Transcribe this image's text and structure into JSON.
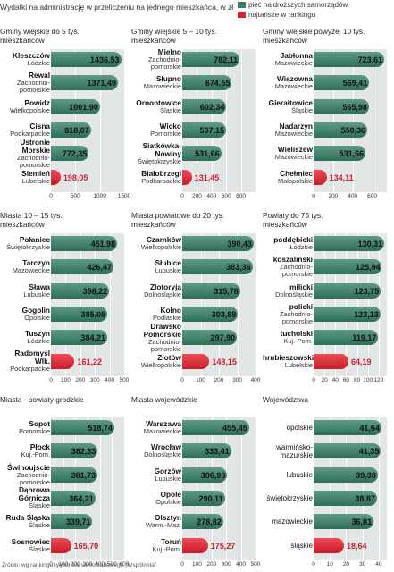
{
  "header": {
    "text": "Wydatki na administrację w przeliczeniu na jednego mieszkańca, w zł",
    "legend_top": "pięć najdroższych samorządów",
    "legend_low": "najtańsze w rankingu",
    "color_top": "#3d7d66",
    "color_low": "#d9232f"
  },
  "footer": "Źródło: wg rankingu tygodnika samorządowego „Wspólnota”",
  "chart_data": [
    {
      "type": "bar",
      "title": "Gminy wiejskie do 5 tys. mieszkańców",
      "xlim": [
        0,
        1500
      ],
      "ticks": [
        "0",
        "500",
        "1000",
        "1500"
      ],
      "categories": [
        {
          "name": "Kleszczów",
          "region": "Łódzkie"
        },
        {
          "name": "Rewal",
          "region": "Zachodnio-pomorskie"
        },
        {
          "name": "Powidz",
          "region": "Wielkopolskie"
        },
        {
          "name": "Cisna",
          "region": "Podkarpackie"
        },
        {
          "name": "Ustronie Morskie",
          "region": "Zachodnio-pomorskie"
        },
        {
          "name": "Siemień",
          "region": "Lubelskie"
        }
      ],
      "values": [
        1436.53,
        1371.49,
        1001.9,
        818.07,
        772.35,
        198.05
      ],
      "labels": [
        "1436,53",
        "1371,49",
        "1001,90",
        "818,07",
        "772,35",
        "198,05"
      ]
    },
    {
      "type": "bar",
      "title": "Gminy wiejskie 5 – 10 tys. mieszkańców",
      "xlim": [
        0,
        1000
      ],
      "ticks": [
        "0",
        "200",
        "400",
        "600",
        "800"
      ],
      "categories": [
        {
          "name": "Mielno",
          "region": "Zachodnio-pomorskie"
        },
        {
          "name": "Słupno",
          "region": "Mazowieckie"
        },
        {
          "name": "Ornontowice",
          "region": "Śląskie"
        },
        {
          "name": "Wicko",
          "region": "Pomorskie"
        },
        {
          "name": "Siatkówka-Nowiny",
          "region": "Świętokrzyskie"
        },
        {
          "name": "Białobrzegi",
          "region": "Podkarpackie"
        }
      ],
      "values": [
        782.11,
        674.55,
        602.34,
        597.15,
        531.66,
        131.45
      ],
      "labels": [
        "782,11",
        "674,55",
        "602,34",
        "597,15",
        "531,66",
        "131,45"
      ]
    },
    {
      "type": "bar",
      "title": "Gminy wiejskie powyżej 10 tys. mieszkańców",
      "xlim": [
        0,
        750
      ],
      "ticks": [
        "0",
        "200",
        "400",
        "600"
      ],
      "categories": [
        {
          "name": "Jabłonna",
          "region": "Mazowieckie"
        },
        {
          "name": "Wiązowna",
          "region": "Mazowieckie"
        },
        {
          "name": "Gierałtowice",
          "region": "Śląskie"
        },
        {
          "name": "Nadarzyn",
          "region": "Mazowieckie"
        },
        {
          "name": "Wieliszew",
          "region": "Mazowieckie"
        },
        {
          "name": "Chełmiec",
          "region": "Małopolskie"
        }
      ],
      "values": [
        723.61,
        569.41,
        565.98,
        550.36,
        531.66,
        134.11
      ],
      "labels": [
        "723,61",
        "569,41",
        "565,98",
        "550,36",
        "531,66",
        "134,11"
      ]
    },
    {
      "type": "bar",
      "title": "Miasta 10 – 15 tys. mieszkańców",
      "xlim": [
        0,
        500
      ],
      "ticks": [
        "0",
        "100",
        "200",
        "300",
        "400",
        "500"
      ],
      "categories": [
        {
          "name": "Połaniec",
          "region": "Świętokrzyskie"
        },
        {
          "name": "Tarczyn",
          "region": "Mazowieckie"
        },
        {
          "name": "Sława",
          "region": "Lubuskie"
        },
        {
          "name": "Gogolin",
          "region": "Opolskie"
        },
        {
          "name": "Tuszyn",
          "region": "Łódzkie"
        },
        {
          "name": "Radomyśl Wlk.",
          "region": "Podkarpackie"
        }
      ],
      "values": [
        451.98,
        426.47,
        398.22,
        385.09,
        384.21,
        161.22
      ],
      "labels": [
        "451,98",
        "426,47",
        "398,22",
        "385,09",
        "384,21",
        "161,22"
      ]
    },
    {
      "type": "bar",
      "title": "Miasta powiatowe do 20 tys. mieszkańców",
      "xlim": [
        0,
        400
      ],
      "ticks": [
        "0",
        "100",
        "200",
        "300",
        "400"
      ],
      "categories": [
        {
          "name": "Czarnków",
          "region": "Wielkopolskie"
        },
        {
          "name": "Słubice",
          "region": "Lubuskie"
        },
        {
          "name": "Złotoryja",
          "region": "Dolnośląskie"
        },
        {
          "name": "Kolno",
          "region": "Podlaskie"
        },
        {
          "name": "Drawsko Pomorskie",
          "region": "Zachodnio-pomorskie"
        },
        {
          "name": "Złotów",
          "region": "Wielkopolskie"
        }
      ],
      "values": [
        390.43,
        383.36,
        315.78,
        303.89,
        297.9,
        148.15
      ],
      "labels": [
        "390,43",
        "383,36",
        "315,78",
        "303,89",
        "297,90",
        "148,15"
      ]
    },
    {
      "type": "bar",
      "title": "Powiaty do 75 tys. mieszkańców",
      "xlim": [
        0,
        135
      ],
      "ticks": [
        "0",
        "20",
        "40",
        "60",
        "80",
        "100",
        "120"
      ],
      "categories": [
        {
          "name": "poddębicki",
          "region": "Łódzkie"
        },
        {
          "name": "koszaliński",
          "region": "Zachodnio-pomorskie"
        },
        {
          "name": "milicki",
          "region": "Dolnośląskie"
        },
        {
          "name": "policki",
          "region": "Zachodnio-pomorskie"
        },
        {
          "name": "tucholski",
          "region": "Kuj.-Pom."
        },
        {
          "name": "hrubieszowski",
          "region": "Lubelskie"
        }
      ],
      "values": [
        130.31,
        125.94,
        123.75,
        123.13,
        119.17,
        64.19
      ],
      "labels": [
        "130,31",
        "125,94",
        "123,75",
        "123,13",
        "119,17",
        "64,19"
      ]
    },
    {
      "type": "bar",
      "title": "Miasta - powiaty grodzkie",
      "xlim": [
        0,
        600
      ],
      "ticks": [
        "0",
        "100",
        "200",
        "300",
        "400",
        "500",
        "600"
      ],
      "categories": [
        {
          "name": "Sopot",
          "region": "Pomorskie"
        },
        {
          "name": "Płock",
          "region": "Kuj.-Pom."
        },
        {
          "name": "Świnoujście",
          "region": "Zachodnio-pomorskie"
        },
        {
          "name": "Dąbrowa Górnicza",
          "region": "Śląskie"
        },
        {
          "name": "Ruda Śląska",
          "region": "Śląskie"
        },
        {
          "name": "Sosnowiec",
          "region": "Śląskie"
        }
      ],
      "values": [
        518.74,
        382.33,
        381.73,
        364.21,
        339.71,
        165.7
      ],
      "labels": [
        "518,74",
        "382,33",
        "381,73",
        "364,21",
        "339,71",
        "165,70"
      ]
    },
    {
      "type": "bar",
      "title": "Miasta wojewódzkie",
      "xlim": [
        0,
        500
      ],
      "ticks": [
        "0",
        "100",
        "200",
        "300",
        "400",
        "500"
      ],
      "categories": [
        {
          "name": "Warszawa",
          "region": "Mazowieckie"
        },
        {
          "name": "Wrocław",
          "region": "Dolnośląskie"
        },
        {
          "name": "Gorzów",
          "region": "Lubuskie"
        },
        {
          "name": "Opole",
          "region": "Opolskie"
        },
        {
          "name": "Olsztyn",
          "region": "Warm.-Maz."
        },
        {
          "name": "Toruń",
          "region": "Kuj.-Pom."
        }
      ],
      "values": [
        455.45,
        333.41,
        306.9,
        290.11,
        278.82,
        175.27
      ],
      "labels": [
        "455,45",
        "333,41",
        "306,90",
        "290,11",
        "278,82",
        "175,27"
      ]
    },
    {
      "type": "bar",
      "title": "Województwa",
      "xlim": [
        0,
        45
      ],
      "ticks": [
        "0",
        "10",
        "20",
        "30",
        "40"
      ],
      "categories": [
        {
          "name": "opolskie",
          "region": ""
        },
        {
          "name": "warmińsko-mazurskie",
          "region": ""
        },
        {
          "name": "lubuskie",
          "region": ""
        },
        {
          "name": "świętokrzyskie",
          "region": ""
        },
        {
          "name": "mazowieckie",
          "region": ""
        },
        {
          "name": "śląskie",
          "region": ""
        }
      ],
      "values": [
        41.64,
        41.35,
        39.38,
        38.87,
        36.81,
        18.64
      ],
      "labels": [
        "41,64",
        "41,35",
        "39,38",
        "38,87",
        "36,81",
        "18,64"
      ]
    }
  ]
}
